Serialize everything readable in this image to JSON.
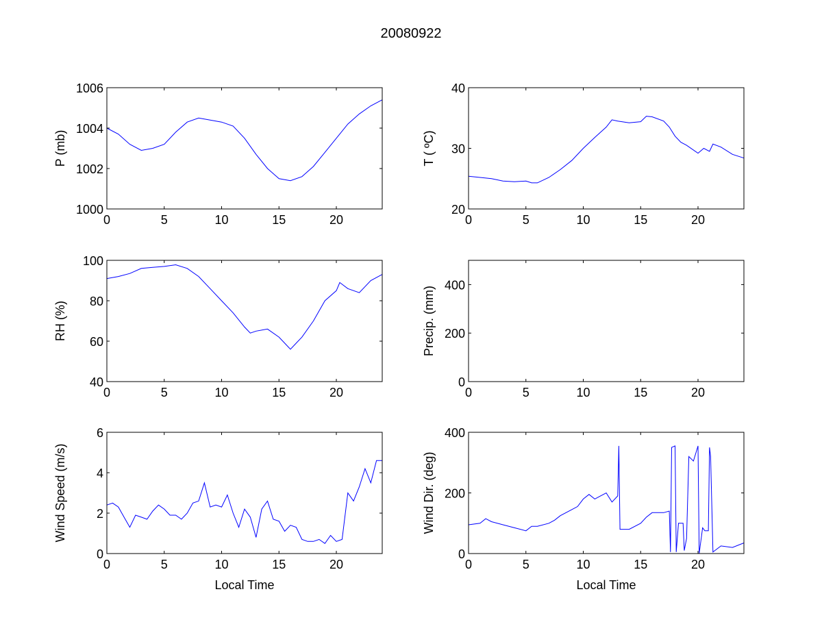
{
  "chart_data": {
    "title": "20080922",
    "line_color": "#0000ff",
    "panels": [
      {
        "id": "pressure",
        "type": "line",
        "ylabel": "P (mb)",
        "xlabel": "",
        "xlim": [
          0,
          24
        ],
        "ylim": [
          1000,
          1006
        ],
        "xticks": [
          0,
          5,
          10,
          15,
          20
        ],
        "yticks": [
          1000,
          1002,
          1004,
          1006
        ],
        "x": [
          0,
          1,
          2,
          3,
          4,
          5,
          6,
          7,
          8,
          9,
          10,
          11,
          12,
          13,
          14,
          15,
          16,
          17,
          18,
          19,
          20,
          21,
          22,
          23,
          24
        ],
        "y": [
          1004.0,
          1003.7,
          1003.2,
          1002.9,
          1003.0,
          1003.2,
          1003.8,
          1004.3,
          1004.5,
          1004.4,
          1004.3,
          1004.1,
          1003.5,
          1002.7,
          1002.0,
          1001.5,
          1001.4,
          1001.6,
          1002.1,
          1002.8,
          1003.5,
          1004.2,
          1004.7,
          1005.1,
          1005.4
        ]
      },
      {
        "id": "temperature",
        "type": "line",
        "ylabel": "T ( ºC)",
        "xlabel": "",
        "xlim": [
          0,
          24
        ],
        "ylim": [
          20,
          40
        ],
        "xticks": [
          0,
          5,
          10,
          15,
          20
        ],
        "yticks": [
          20,
          30,
          40
        ],
        "x": [
          0,
          1,
          2,
          3,
          4,
          5,
          5.5,
          6,
          7,
          8,
          9,
          10,
          11,
          12,
          12.5,
          13,
          14,
          15,
          15.5,
          16,
          17,
          17.5,
          18,
          18.5,
          19,
          20,
          20.5,
          21,
          21.3,
          22,
          23,
          24
        ],
        "y": [
          25.4,
          25.2,
          25.0,
          24.6,
          24.5,
          24.6,
          24.3,
          24.3,
          25.2,
          26.5,
          28,
          30,
          31.8,
          33.5,
          34.7,
          34.5,
          34.2,
          34.4,
          35.3,
          35.2,
          34.5,
          33.5,
          32,
          31,
          30.5,
          29.2,
          30,
          29.5,
          30.7,
          30.2,
          29,
          28.4
        ]
      },
      {
        "id": "humidity",
        "type": "line",
        "ylabel": "RH (%)",
        "xlabel": "",
        "xlim": [
          0,
          24
        ],
        "ylim": [
          40,
          100
        ],
        "xticks": [
          0,
          5,
          10,
          15,
          20
        ],
        "yticks": [
          40,
          60,
          80,
          100
        ],
        "x": [
          0,
          1,
          2,
          3,
          4,
          5,
          6,
          7,
          8,
          9,
          10,
          11,
          12,
          12.5,
          13,
          14,
          15,
          15.5,
          16,
          16.5,
          17,
          18,
          19,
          20,
          20.3,
          21,
          22,
          23,
          24
        ],
        "y": [
          91,
          92,
          93.5,
          96,
          96.5,
          97,
          97.8,
          96,
          92,
          86,
          80,
          74,
          67,
          64,
          65,
          66,
          62,
          59,
          56,
          59,
          62,
          70,
          80,
          85,
          89,
          86,
          84,
          90,
          93
        ]
      },
      {
        "id": "precipitation",
        "type": "line",
        "ylabel": "Precip. (mm)",
        "xlabel": "",
        "xlim": [
          0,
          24
        ],
        "ylim": [
          0,
          500
        ],
        "xticks": [
          0,
          5,
          10,
          15,
          20
        ],
        "yticks": [
          0,
          200,
          400
        ],
        "x": [],
        "y": []
      },
      {
        "id": "wind-speed",
        "type": "line",
        "ylabel": "Wind Speed (m/s)",
        "xlabel": "Local Time",
        "xlim": [
          0,
          24
        ],
        "ylim": [
          0,
          6
        ],
        "xticks": [
          0,
          5,
          10,
          15,
          20
        ],
        "yticks": [
          0,
          2,
          4,
          6
        ],
        "x": [
          0,
          0.5,
          1,
          1.5,
          2,
          2.5,
          3,
          3.5,
          4,
          4.5,
          5,
          5.5,
          6,
          6.5,
          7,
          7.5,
          8,
          8.5,
          9,
          9.5,
          10,
          10.5,
          11,
          11.5,
          12,
          12.5,
          13,
          13.5,
          14,
          14.5,
          15,
          15.5,
          16,
          16.5,
          17,
          17.5,
          18,
          18.5,
          19,
          19.5,
          20,
          20.5,
          21,
          21.5,
          22,
          22.5,
          23,
          23.5,
          24
        ],
        "y": [
          2.4,
          2.5,
          2.3,
          1.8,
          1.3,
          1.9,
          1.8,
          1.7,
          2.1,
          2.4,
          2.2,
          1.9,
          1.9,
          1.7,
          2.0,
          2.5,
          2.6,
          3.5,
          2.3,
          2.4,
          2.3,
          2.9,
          2.0,
          1.3,
          2.2,
          1.8,
          0.8,
          2.2,
          2.6,
          1.7,
          1.6,
          1.1,
          1.4,
          1.3,
          0.7,
          0.6,
          0.6,
          0.7,
          0.5,
          0.9,
          0.6,
          0.7,
          3.0,
          2.6,
          3.3,
          4.2,
          3.5,
          4.6,
          4.6
        ]
      },
      {
        "id": "wind-direction",
        "type": "line",
        "ylabel": "Wind Dir. (deg)",
        "xlabel": "Local Time",
        "xlim": [
          0,
          24
        ],
        "ylim": [
          0,
          400
        ],
        "xticks": [
          0,
          5,
          10,
          15,
          20
        ],
        "yticks": [
          0,
          200,
          400
        ],
        "x": [
          0,
          1,
          1.5,
          2,
          3,
          4,
          5,
          5.5,
          6,
          7,
          7.5,
          8,
          9,
          9.5,
          10,
          10.5,
          11,
          11.5,
          12,
          12.5,
          13,
          13.1,
          13.2,
          14,
          15,
          15.5,
          16,
          17,
          17.5,
          17.6,
          17.7,
          18,
          18.1,
          18.3,
          18.7,
          18.8,
          19,
          19.2,
          19.6,
          20,
          20.1,
          20.4,
          20.6,
          20.9,
          21,
          21.1,
          21.3,
          22,
          23,
          24
        ],
        "y": [
          95,
          100,
          115,
          105,
          95,
          85,
          75,
          90,
          90,
          100,
          110,
          125,
          145,
          155,
          180,
          195,
          180,
          190,
          200,
          170,
          190,
          355,
          80,
          80,
          100,
          120,
          135,
          135,
          140,
          5,
          350,
          355,
          5,
          100,
          100,
          10,
          50,
          320,
          305,
          355,
          0,
          85,
          75,
          75,
          350,
          320,
          5,
          25,
          20,
          35
        ]
      }
    ]
  }
}
